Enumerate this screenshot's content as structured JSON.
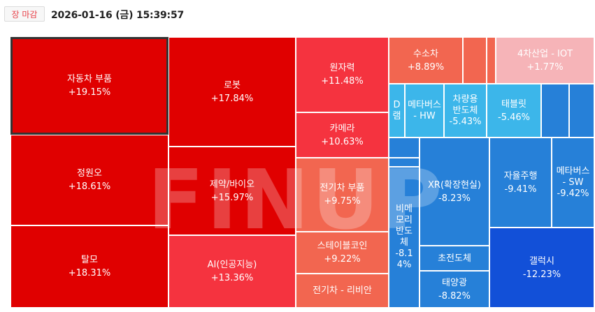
{
  "header": {
    "market_status": "장 마감",
    "timestamp": "2026-01-16 (금) 15:39:57"
  },
  "watermark": "FINUP",
  "colors": {
    "up_strong": "#e00000",
    "up_mid": "#f5333f",
    "up_light": "#f26650",
    "up_pale": "#f6b4b8",
    "down_light": "#3cb6ea",
    "down_mid": "#2680d8",
    "down_strong": "#1250d8"
  },
  "tiles": [
    {
      "name": "자동차 부품",
      "pct": "+19.15%"
    },
    {
      "name": "정원오",
      "pct": "+18.61%"
    },
    {
      "name": "탈모",
      "pct": "+18.31%"
    },
    {
      "name": "로봇",
      "pct": "+17.84%"
    },
    {
      "name": "제약/바이오",
      "pct": "+15.97%"
    },
    {
      "name": "AI(인공지능)",
      "pct": "+13.36%"
    },
    {
      "name": "원자력",
      "pct": "+11.48%"
    },
    {
      "name": "카메라",
      "pct": "+10.63%"
    },
    {
      "name": "전기차 부품",
      "pct": "+9.75%"
    },
    {
      "name": "스테이블코인",
      "pct": "+9.22%"
    },
    {
      "name": "전기차 - 리비안",
      "pct": ""
    },
    {
      "name": "수소차",
      "pct": "+8.89%"
    },
    {
      "name": "4차산업 - IOT",
      "pct": "+1.77%"
    },
    {
      "name": "D램",
      "pct": ""
    },
    {
      "name": "메타버스 - HW",
      "pct": ""
    },
    {
      "name": "차량용 반도체",
      "pct": "-5.43%"
    },
    {
      "name": "태블릿",
      "pct": "-5.46%"
    },
    {
      "name": "XR(확장현실)",
      "pct": "-8.23%"
    },
    {
      "name": "자율주행",
      "pct": "-9.41%"
    },
    {
      "name": "메타버스 - SW",
      "pct": "-9.42%"
    },
    {
      "name": "비메모리반도체",
      "pct": "-8.14%"
    },
    {
      "name": "초전도체",
      "pct": ""
    },
    {
      "name": "태양광",
      "pct": "-8.82%"
    },
    {
      "name": "갤럭시",
      "pct": "-12.23%"
    }
  ]
}
